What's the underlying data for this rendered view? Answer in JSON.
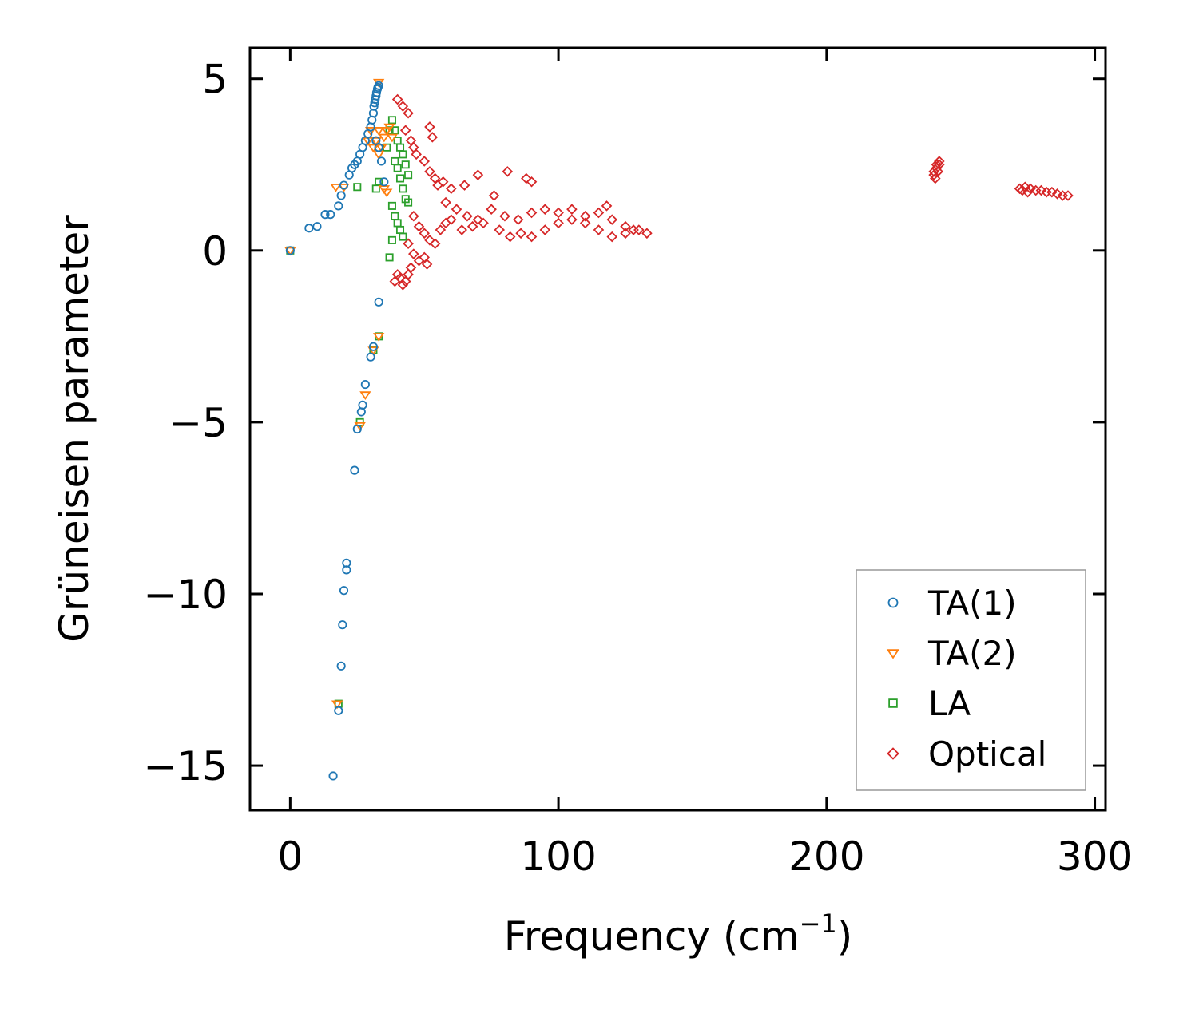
{
  "chart_data": {
    "type": "scatter",
    "title": "",
    "xlabel": "Frequency (cm",
    "xlabel_sup": "−1",
    "xlabel_end": ")",
    "ylabel": "Grüneisen parameter",
    "xlim": [
      -15,
      304
    ],
    "ylim": [
      -16.3,
      5.9
    ],
    "x_ticks": [
      0,
      100,
      200,
      300
    ],
    "x_tick_labels": [
      "0",
      "100",
      "200",
      "300"
    ],
    "y_ticks": [
      5,
      0,
      -5,
      -10,
      -15
    ],
    "y_tick_labels": [
      "5",
      "0",
      "−5",
      "−10",
      "−15"
    ],
    "legend_position": "lower-right",
    "series": [
      {
        "name": "TA(1)",
        "marker": "circle",
        "color": "#1f77b4",
        "points": [
          [
            0,
            0
          ],
          [
            7,
            0.65
          ],
          [
            10,
            0.7
          ],
          [
            13,
            1.05
          ],
          [
            15,
            1.05
          ],
          [
            18,
            1.3
          ],
          [
            19,
            1.6
          ],
          [
            20,
            1.9
          ],
          [
            22,
            2.2
          ],
          [
            23,
            2.4
          ],
          [
            24,
            2.5
          ],
          [
            25,
            2.6
          ],
          [
            26,
            2.8
          ],
          [
            27,
            3.0
          ],
          [
            28,
            3.2
          ],
          [
            29,
            3.4
          ],
          [
            30,
            3.6
          ],
          [
            30.5,
            3.8
          ],
          [
            31,
            4.0
          ],
          [
            31.2,
            4.2
          ],
          [
            31.5,
            4.3
          ],
          [
            31.7,
            4.4
          ],
          [
            32,
            4.5
          ],
          [
            32.2,
            4.6
          ],
          [
            32.5,
            4.7
          ],
          [
            32.7,
            4.75
          ],
          [
            33,
            4.8
          ],
          [
            32,
            3.2
          ],
          [
            33,
            3.0
          ],
          [
            34,
            2.6
          ],
          [
            35,
            2.0
          ],
          [
            33,
            -1.5
          ],
          [
            31,
            -2.8
          ],
          [
            30,
            -3.1
          ],
          [
            28,
            -3.9
          ],
          [
            27,
            -4.5
          ],
          [
            26.5,
            -4.7
          ],
          [
            25,
            -5.2
          ],
          [
            24,
            -6.4
          ],
          [
            21,
            -9.1
          ],
          [
            21,
            -9.3
          ],
          [
            20,
            -9.9
          ],
          [
            19.5,
            -10.9
          ],
          [
            19,
            -12.1
          ],
          [
            18,
            -13.4
          ],
          [
            16,
            -15.3
          ]
        ]
      },
      {
        "name": "TA(2)",
        "marker": "triangle-down",
        "color": "#ff7f0e",
        "points": [
          [
            0,
            0
          ],
          [
            17,
            1.85
          ],
          [
            20,
            1.85
          ],
          [
            29,
            3.2
          ],
          [
            30,
            3.5
          ],
          [
            31,
            3.0
          ],
          [
            32,
            3.2
          ],
          [
            33,
            3.5
          ],
          [
            33,
            4.9
          ],
          [
            33,
            2.8
          ],
          [
            34,
            3.0
          ],
          [
            35,
            3.3
          ],
          [
            36,
            3.5
          ],
          [
            37,
            3.6
          ],
          [
            38,
            3.3
          ],
          [
            35,
            1.8
          ],
          [
            36,
            1.7
          ],
          [
            33,
            -2.5
          ],
          [
            31,
            -2.9
          ],
          [
            28,
            -4.2
          ],
          [
            26,
            -5.1
          ],
          [
            17.5,
            -13.2
          ]
        ]
      },
      {
        "name": "LA",
        "marker": "square",
        "color": "#2ca02c",
        "points": [
          [
            0,
            0
          ],
          [
            25,
            1.85
          ],
          [
            32,
            1.8
          ],
          [
            33,
            2.0
          ],
          [
            36,
            3.0
          ],
          [
            37,
            3.5
          ],
          [
            38,
            3.8
          ],
          [
            39,
            3.5
          ],
          [
            40,
            3.2
          ],
          [
            41,
            3.0
          ],
          [
            42,
            2.8
          ],
          [
            43,
            2.5
          ],
          [
            44,
            2.2
          ],
          [
            39,
            2.6
          ],
          [
            40,
            2.4
          ],
          [
            41,
            2.1
          ],
          [
            42,
            1.8
          ],
          [
            43,
            1.5
          ],
          [
            44,
            1.4
          ],
          [
            38,
            1.3
          ],
          [
            39,
            1.0
          ],
          [
            40,
            0.8
          ],
          [
            41,
            0.6
          ],
          [
            38,
            0.3
          ],
          [
            37,
            -0.2
          ],
          [
            42,
            0.4
          ],
          [
            33,
            -2.5
          ],
          [
            31,
            -2.9
          ],
          [
            26,
            -5.0
          ],
          [
            18,
            -13.2
          ]
        ]
      },
      {
        "name": "Optical",
        "marker": "diamond",
        "color": "#d62728",
        "points": [
          [
            40,
            4.4
          ],
          [
            42,
            4.2
          ],
          [
            44,
            4.0
          ],
          [
            43,
            3.5
          ],
          [
            45,
            3.2
          ],
          [
            46,
            3.0
          ],
          [
            52,
            3.6
          ],
          [
            53,
            3.3
          ],
          [
            47,
            2.8
          ],
          [
            50,
            2.6
          ],
          [
            52,
            2.3
          ],
          [
            54,
            2.1
          ],
          [
            55,
            1.9
          ],
          [
            57,
            2.0
          ],
          [
            60,
            1.8
          ],
          [
            65,
            1.9
          ],
          [
            70,
            2.2
          ],
          [
            76,
            1.6
          ],
          [
            81,
            2.3
          ],
          [
            88,
            2.1
          ],
          [
            90,
            2.0
          ],
          [
            58,
            1.4
          ],
          [
            62,
            1.2
          ],
          [
            66,
            1.0
          ],
          [
            70,
            0.9
          ],
          [
            75,
            1.2
          ],
          [
            80,
            1.0
          ],
          [
            85,
            0.9
          ],
          [
            90,
            1.1
          ],
          [
            95,
            1.2
          ],
          [
            100,
            1.1
          ],
          [
            105,
            1.2
          ],
          [
            110,
            1.0
          ],
          [
            115,
            1.1
          ],
          [
            118,
            1.3
          ],
          [
            120,
            0.9
          ],
          [
            125,
            0.7
          ],
          [
            130,
            0.6
          ],
          [
            133,
            0.5
          ],
          [
            46,
            1.0
          ],
          [
            48,
            0.7
          ],
          [
            50,
            0.5
          ],
          [
            52,
            0.3
          ],
          [
            54,
            0.2
          ],
          [
            56,
            0.6
          ],
          [
            58,
            0.8
          ],
          [
            60,
            0.9
          ],
          [
            64,
            0.6
          ],
          [
            68,
            0.7
          ],
          [
            72,
            0.8
          ],
          [
            78,
            0.6
          ],
          [
            82,
            0.4
          ],
          [
            86,
            0.5
          ],
          [
            90,
            0.4
          ],
          [
            95,
            0.6
          ],
          [
            100,
            0.8
          ],
          [
            105,
            0.9
          ],
          [
            110,
            0.8
          ],
          [
            115,
            0.6
          ],
          [
            120,
            0.4
          ],
          [
            125,
            0.5
          ],
          [
            128,
            0.6
          ],
          [
            44,
            0.2
          ],
          [
            46,
            -0.1
          ],
          [
            48,
            -0.3
          ],
          [
            50,
            -0.2
          ],
          [
            51,
            -0.4
          ],
          [
            45,
            -0.5
          ],
          [
            44,
            -0.7
          ],
          [
            43,
            -0.9
          ],
          [
            42,
            -1.0
          ],
          [
            41,
            -0.8
          ],
          [
            40,
            -0.7
          ],
          [
            39,
            -0.9
          ],
          [
            240,
            2.2
          ],
          [
            240,
            2.3
          ],
          [
            241,
            2.4
          ],
          [
            241,
            2.5
          ],
          [
            242,
            2.5
          ],
          [
            242,
            2.6
          ],
          [
            240.5,
            2.1
          ],
          [
            241.5,
            2.3
          ],
          [
            272,
            1.8
          ],
          [
            274,
            1.85
          ],
          [
            276,
            1.8
          ],
          [
            278,
            1.75
          ],
          [
            280,
            1.75
          ],
          [
            282,
            1.7
          ],
          [
            284,
            1.7
          ],
          [
            286,
            1.65
          ],
          [
            288,
            1.6
          ],
          [
            290,
            1.6
          ],
          [
            273,
            1.75
          ],
          [
            275,
            1.7
          ]
        ]
      }
    ]
  }
}
